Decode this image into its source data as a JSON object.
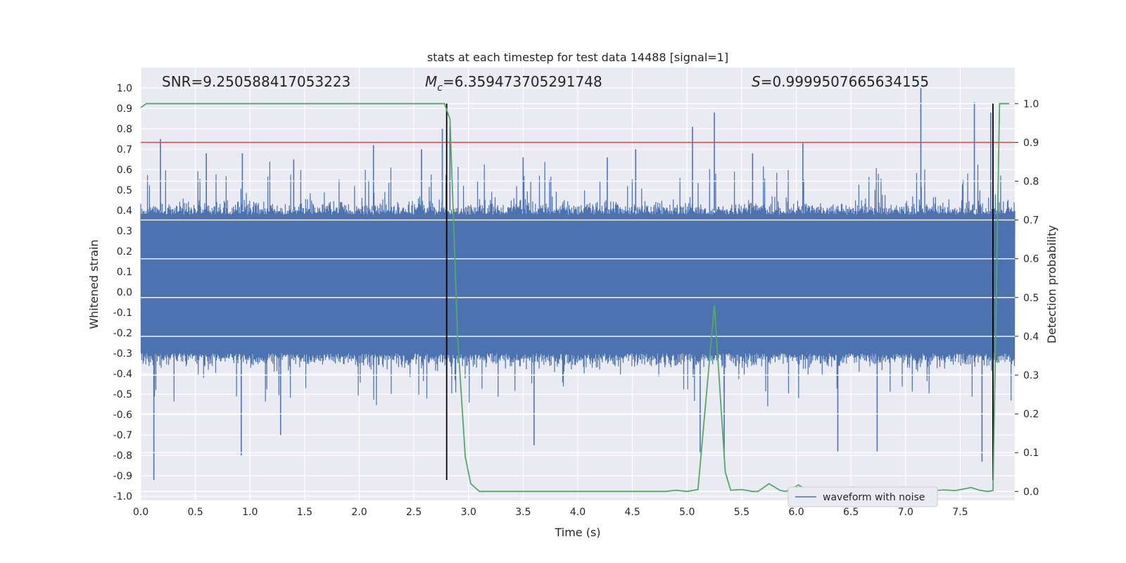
{
  "chart_data": {
    "type": "line",
    "title": "stats at each timestep for test data 14488 [signal=1]",
    "xlabel": "Time (s)",
    "ylabel": "Whitened strain",
    "y2label": "Detection probability",
    "xlim": [
      0.0,
      8.0
    ],
    "ylim": [
      -1.02,
      1.1
    ],
    "y2lim": [
      -0.023,
      1.093
    ],
    "xticks": [
      "0.0",
      "0.5",
      "1.0",
      "1.5",
      "2.0",
      "2.5",
      "3.0",
      "3.5",
      "4.0",
      "4.5",
      "5.0",
      "5.5",
      "6.0",
      "6.5",
      "7.0",
      "7.5"
    ],
    "yticks": [
      "1.0",
      "0.9",
      "0.8",
      "0.7",
      "0.6",
      "0.5",
      "0.4",
      "0.3",
      "0.2",
      "0.1",
      "0.0",
      "-0.1",
      "-0.2",
      "-0.3",
      "-0.4",
      "-0.5",
      "-0.6",
      "-0.7",
      "-0.8",
      "-0.9",
      "-1.0"
    ],
    "y2ticks": [
      "0.0",
      "0.1",
      "0.2",
      "0.3",
      "0.4",
      "0.5",
      "0.6",
      "0.7",
      "0.8",
      "0.9",
      "1.0"
    ],
    "grid": true,
    "legend_position": "lower-right",
    "annotations": {
      "snr": "SNR=9.250588417053223",
      "mc_symbol": "M",
      "mc_sub": "c",
      "mc_value": "=6.359473705291748",
      "s_symbol": "S",
      "s_value": "=0.9999507665634155"
    },
    "threshold_y2": 0.9,
    "vlines_x": [
      2.8,
      7.8
    ],
    "series": [
      {
        "name": "waveform with noise",
        "axis": "left",
        "color": "#4c72b0",
        "description_values": "noise band between roughly -0.35 and 0.45 with spikes up to 1.0 and down to -0.92",
        "spikes": [
          {
            "x": 0.18,
            "y": 0.75
          },
          {
            "x": 0.6,
            "y": 0.68
          },
          {
            "x": 0.93,
            "y": 0.68
          },
          {
            "x": 1.4,
            "y": 0.65
          },
          {
            "x": 2.13,
            "y": 0.72
          },
          {
            "x": 2.57,
            "y": 0.7
          },
          {
            "x": 2.76,
            "y": 0.8
          },
          {
            "x": 2.83,
            "y": 0.81
          },
          {
            "x": 3.5,
            "y": 0.66
          },
          {
            "x": 4.27,
            "y": 0.66
          },
          {
            "x": 4.53,
            "y": 0.7
          },
          {
            "x": 5.05,
            "y": 0.81
          },
          {
            "x": 5.25,
            "y": 0.88
          },
          {
            "x": 5.6,
            "y": 0.68
          },
          {
            "x": 6.06,
            "y": 0.73
          },
          {
            "x": 7.14,
            "y": 1.0
          },
          {
            "x": 7.63,
            "y": 0.93
          },
          {
            "x": 7.78,
            "y": 0.88
          },
          {
            "x": 0.12,
            "y": -0.92
          },
          {
            "x": 0.92,
            "y": -0.8
          },
          {
            "x": 1.28,
            "y": -0.7
          },
          {
            "x": 3.6,
            "y": -0.75
          },
          {
            "x": 5.12,
            "y": -0.79
          },
          {
            "x": 5.34,
            "y": -0.81
          },
          {
            "x": 6.38,
            "y": -0.78
          },
          {
            "x": 6.74,
            "y": -0.78
          },
          {
            "x": 7.7,
            "y": -0.83
          }
        ]
      },
      {
        "name": "detection probability",
        "axis": "right",
        "color": "#55a868",
        "x": [
          0.0,
          0.05,
          2.5,
          2.78,
          2.83,
          2.9,
          2.97,
          3.02,
          3.1,
          3.5,
          4.0,
          4.5,
          4.8,
          4.9,
          5.0,
          5.1,
          5.25,
          5.35,
          5.4,
          5.5,
          5.6,
          5.65,
          5.75,
          5.85,
          5.9,
          5.95,
          6.02,
          6.1,
          6.3,
          6.8,
          7.2,
          7.35,
          7.45,
          7.6,
          7.68,
          7.75,
          7.8,
          7.86,
          7.95
        ],
        "values": [
          0.99,
          1.0,
          1.0,
          1.0,
          0.96,
          0.4,
          0.09,
          0.02,
          0.0,
          0.0,
          0.0,
          0.0,
          0.0,
          0.003,
          0.0,
          0.005,
          0.48,
          0.05,
          0.003,
          0.005,
          0.0,
          0.0,
          0.02,
          0.003,
          0.0,
          0.005,
          0.017,
          0.003,
          0.0,
          0.0,
          0.0,
          0.004,
          0.002,
          0.01,
          0.003,
          0.0,
          0.002,
          1.0,
          1.0
        ]
      }
    ]
  }
}
